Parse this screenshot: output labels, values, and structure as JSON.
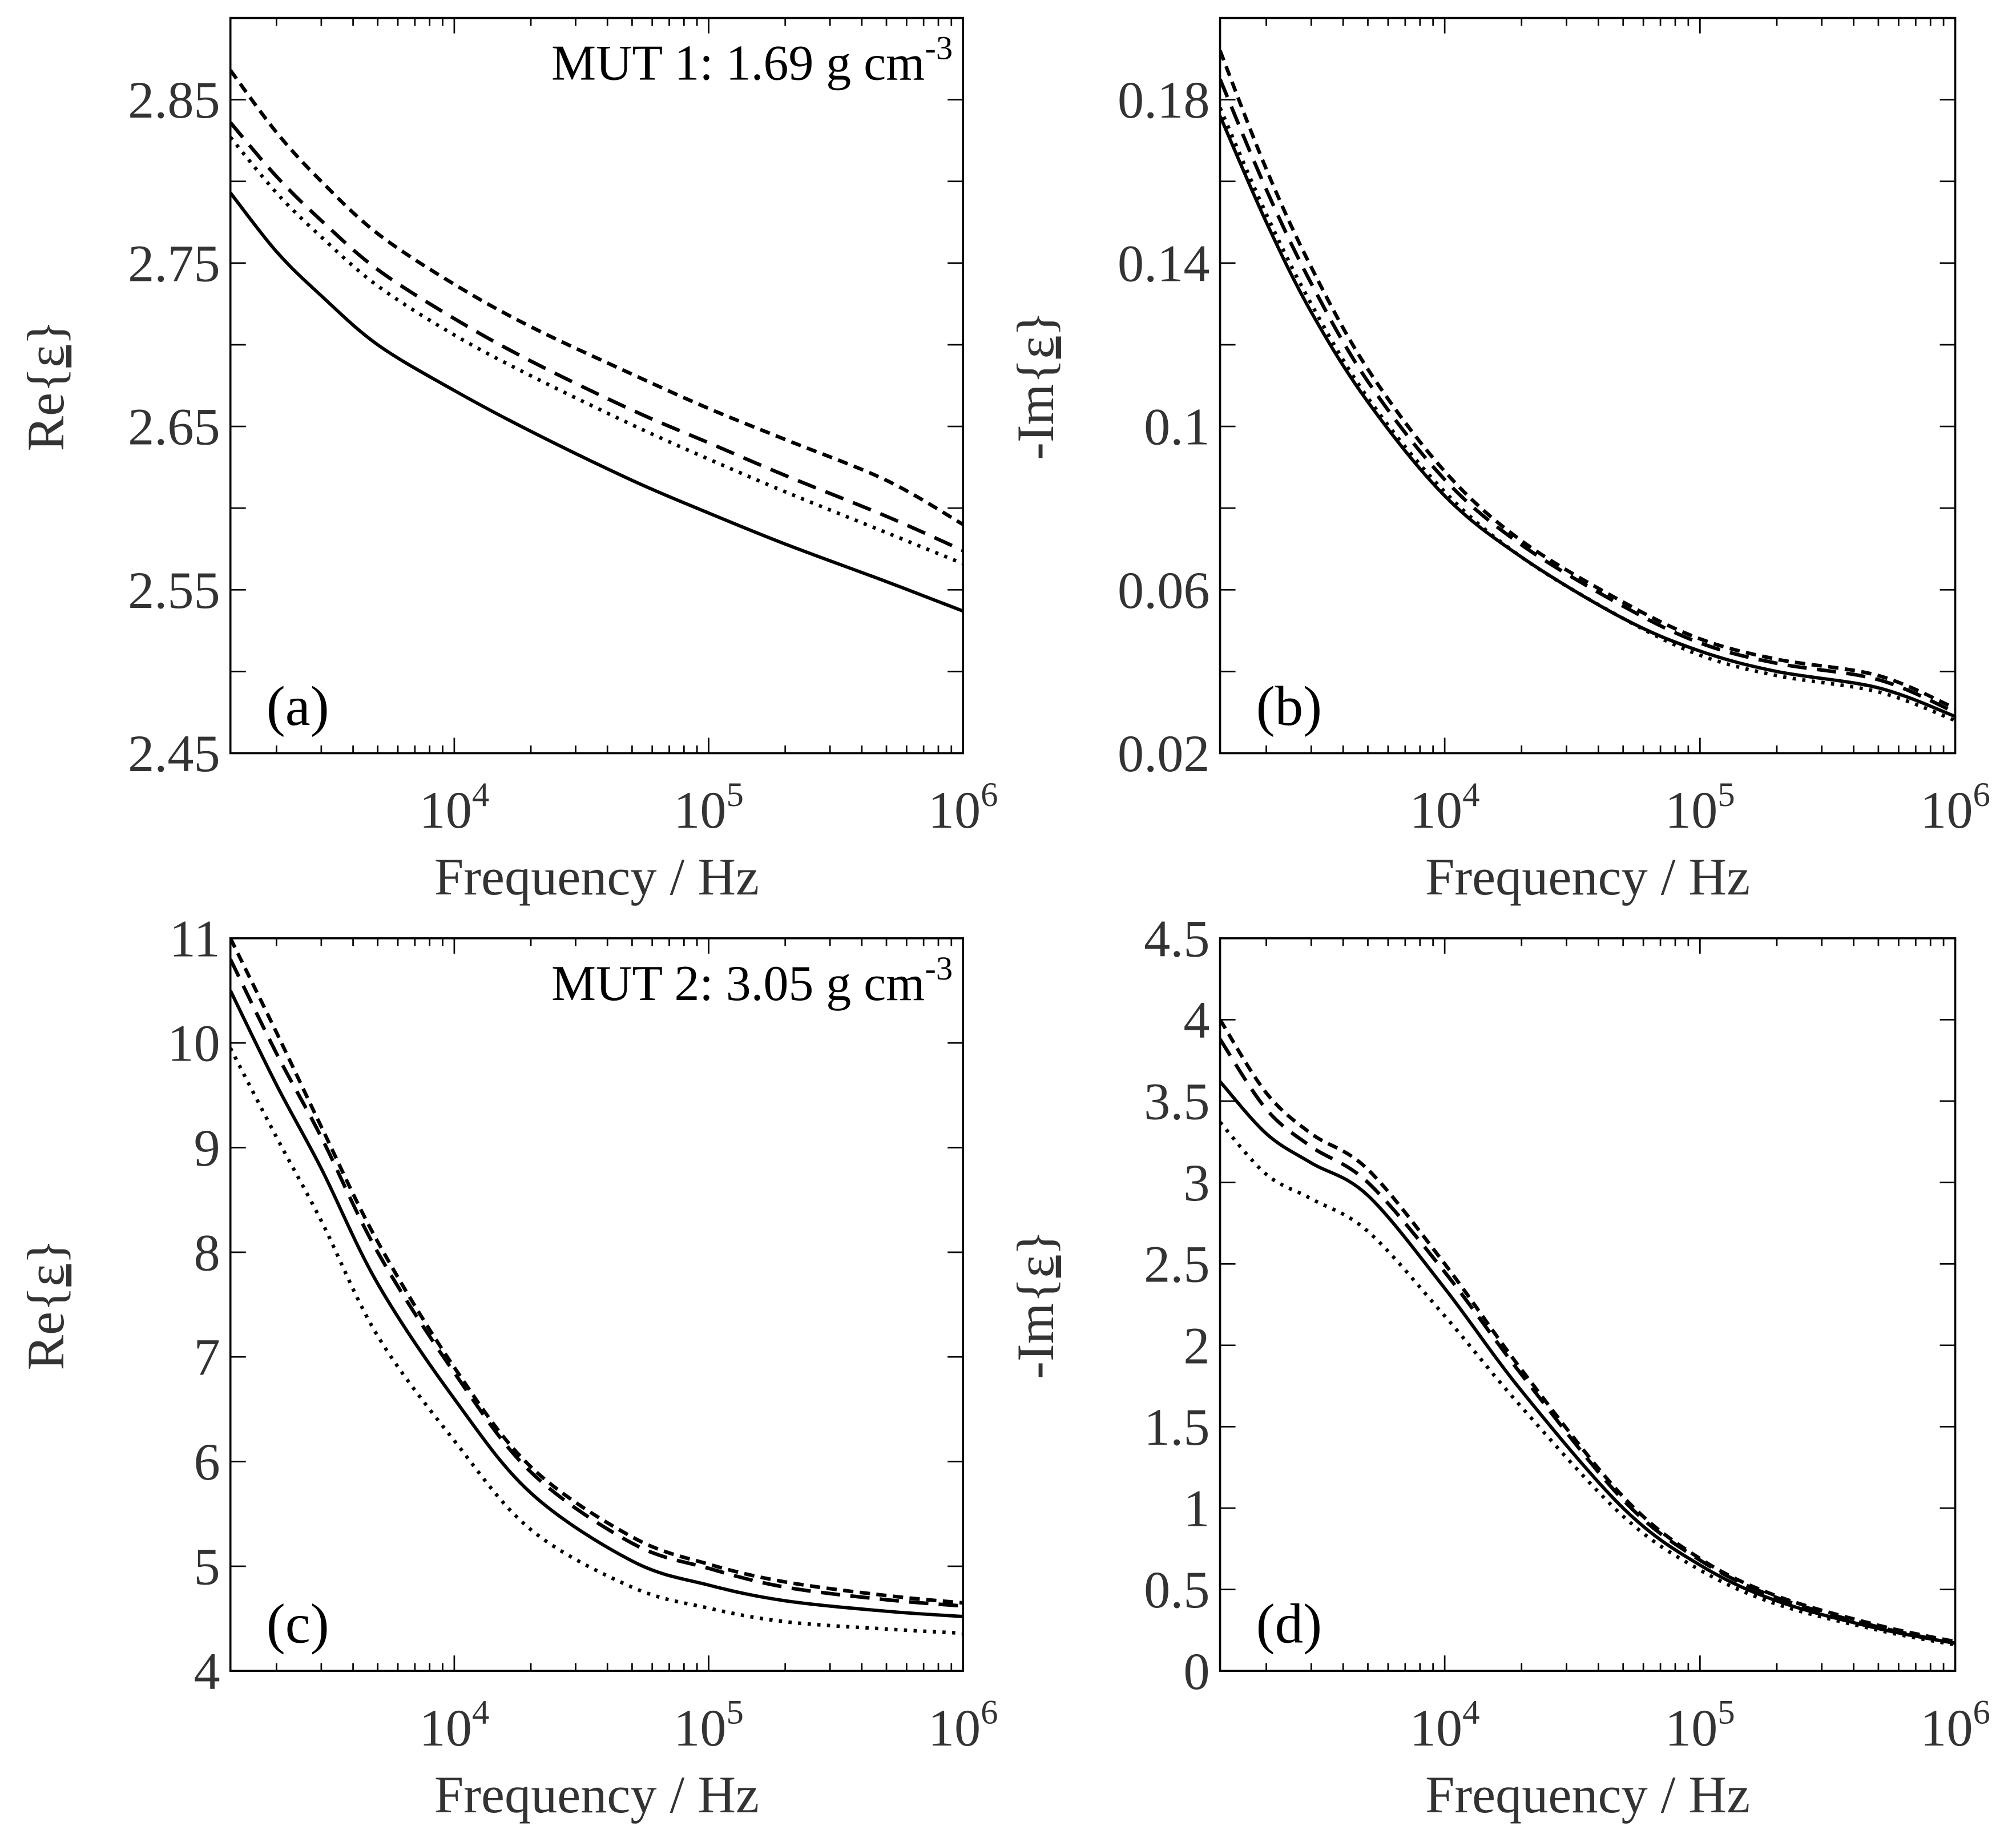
{
  "chart_data": [
    {
      "type": "line",
      "panel_label": "(a)",
      "annotation": {
        "text": "MUT 1: 1.69 g cm",
        "sup": "-3"
      },
      "xlabel": "Frequency / Hz",
      "ylabel": {
        "prefix": "Re{",
        "symbol": "ε",
        "suffix": "}"
      },
      "xscale": "log",
      "xlim": [
        1318,
        1000000
      ],
      "ylim": [
        2.45,
        2.9
      ],
      "x_ticks": [
        10000,
        100000,
        1000000
      ],
      "x_tick_labels": [
        "10^4",
        "10^5",
        "10^6"
      ],
      "y_ticks": [
        2.45,
        2.55,
        2.65,
        2.75,
        2.85
      ],
      "y_tick_labels": [
        "2.45",
        "2.55",
        "2.65",
        "2.75",
        "2.85"
      ],
      "y_minor_step": 0.05,
      "grid": false,
      "x": [
        1318,
        2000,
        3000,
        5000,
        10000,
        20000,
        50000,
        100000,
        200000,
        500000,
        1000000
      ],
      "series": [
        {
          "style": "solid",
          "values": [
            2.793,
            2.757,
            2.73,
            2.7,
            2.672,
            2.647,
            2.617,
            2.597,
            2.578,
            2.555,
            2.537
          ]
        },
        {
          "style": "dotted",
          "values": [
            2.827,
            2.793,
            2.766,
            2.736,
            2.706,
            2.681,
            2.651,
            2.63,
            2.61,
            2.585,
            2.566
          ]
        },
        {
          "style": "long-dash",
          "values": [
            2.836,
            2.803,
            2.776,
            2.746,
            2.716,
            2.69,
            2.66,
            2.64,
            2.62,
            2.595,
            2.574
          ]
        },
        {
          "style": "short-dash",
          "values": [
            2.868,
            2.83,
            2.8,
            2.768,
            2.737,
            2.711,
            2.682,
            2.661,
            2.642,
            2.617,
            2.59
          ]
        }
      ]
    },
    {
      "type": "line",
      "panel_label": "(b)",
      "xlabel": "Frequency / Hz",
      "ylabel": {
        "prefix": "-Im{",
        "symbol": "ε",
        "suffix": "}"
      },
      "xscale": "log",
      "xlim": [
        1318,
        1000000
      ],
      "ylim": [
        0.02,
        0.2
      ],
      "x_ticks": [
        10000,
        100000,
        1000000
      ],
      "x_tick_labels": [
        "10^4",
        "10^5",
        "10^6"
      ],
      "y_ticks": [
        0.02,
        0.06,
        0.1,
        0.14,
        0.18
      ],
      "y_tick_labels": [
        "0.02",
        "0.06",
        "0.1",
        "0.14",
        "0.18"
      ],
      "y_minor_step": 0.02,
      "grid": false,
      "x": [
        1318,
        2000,
        3000,
        5000,
        10000,
        20000,
        50000,
        100000,
        200000,
        500000,
        1000000
      ],
      "series": [
        {
          "style": "solid",
          "values": [
            0.176,
            0.15,
            0.128,
            0.106,
            0.083,
            0.068,
            0.053,
            0.045,
            0.04,
            0.036,
            0.029
          ]
        },
        {
          "style": "dotted",
          "values": [
            0.178,
            0.152,
            0.13,
            0.107,
            0.084,
            0.068,
            0.053,
            0.044,
            0.039,
            0.035,
            0.028
          ]
        },
        {
          "style": "long-dash",
          "values": [
            0.185,
            0.158,
            0.135,
            0.111,
            0.087,
            0.071,
            0.056,
            0.047,
            0.042,
            0.038,
            0.03
          ]
        },
        {
          "style": "short-dash",
          "values": [
            0.192,
            0.163,
            0.139,
            0.114,
            0.089,
            0.072,
            0.057,
            0.048,
            0.043,
            0.039,
            0.031
          ]
        }
      ]
    },
    {
      "type": "line",
      "panel_label": "(c)",
      "annotation": {
        "text": "MUT 2: 3.05 g cm",
        "sup": "-3"
      },
      "xlabel": "Frequency / Hz",
      "ylabel": {
        "prefix": "Re{",
        "symbol": "ε",
        "suffix": "}"
      },
      "xscale": "log",
      "xlim": [
        1318,
        1000000
      ],
      "ylim": [
        4,
        11
      ],
      "x_ticks": [
        10000,
        100000,
        1000000
      ],
      "x_tick_labels": [
        "10^4",
        "10^5",
        "10^6"
      ],
      "y_ticks": [
        4,
        5,
        6,
        7,
        8,
        9,
        10,
        11
      ],
      "y_tick_labels": [
        "4",
        "5",
        "6",
        "7",
        "8",
        "9",
        "10",
        "11"
      ],
      "y_minor_step": 1,
      "grid": false,
      "x": [
        1318,
        2000,
        3000,
        5000,
        10000,
        20000,
        50000,
        100000,
        200000,
        500000,
        1000000
      ],
      "series": [
        {
          "style": "solid",
          "values": [
            10.5,
            9.6,
            8.8,
            7.7,
            6.6,
            5.7,
            5.05,
            4.82,
            4.67,
            4.57,
            4.52
          ]
        },
        {
          "style": "dotted",
          "values": [
            9.95,
            9.1,
            8.3,
            7.2,
            6.2,
            5.35,
            4.8,
            4.6,
            4.47,
            4.4,
            4.36
          ]
        },
        {
          "style": "long-dash",
          "values": [
            10.8,
            9.9,
            9.1,
            8.0,
            6.85,
            5.9,
            5.22,
            4.98,
            4.8,
            4.68,
            4.62
          ]
        },
        {
          "style": "short-dash",
          "values": [
            11.0,
            10.1,
            9.2,
            8.1,
            6.9,
            5.95,
            5.28,
            5.02,
            4.85,
            4.72,
            4.65
          ]
        }
      ]
    },
    {
      "type": "line",
      "panel_label": "(d)",
      "xlabel": "Frequency / Hz",
      "ylabel": {
        "prefix": "-Im{",
        "symbol": "ε",
        "suffix": "}"
      },
      "xscale": "log",
      "xlim": [
        1318,
        1000000
      ],
      "ylim": [
        0,
        4.5
      ],
      "x_ticks": [
        10000,
        100000,
        1000000
      ],
      "x_tick_labels": [
        "10^4",
        "10^5",
        "10^6"
      ],
      "y_ticks": [
        0,
        0.5,
        1,
        1.5,
        2,
        2.5,
        3,
        3.5,
        4,
        4.5
      ],
      "y_tick_labels": [
        "0",
        "0.5",
        "1",
        "1.5",
        "2",
        "2.5",
        "3",
        "3.5",
        "4",
        "4.5"
      ],
      "y_minor_step": 0.5,
      "grid": false,
      "x": [
        1318,
        2000,
        3000,
        5000,
        10000,
        20000,
        50000,
        100000,
        200000,
        500000,
        1000000
      ],
      "series": [
        {
          "style": "solid",
          "values": [
            3.62,
            3.3,
            3.12,
            2.92,
            2.35,
            1.72,
            1.0,
            0.65,
            0.43,
            0.26,
            0.17
          ]
        },
        {
          "style": "dotted",
          "values": [
            3.37,
            3.05,
            2.9,
            2.7,
            2.18,
            1.62,
            0.95,
            0.62,
            0.41,
            0.25,
            0.16
          ]
        },
        {
          "style": "long-dash",
          "values": [
            3.88,
            3.45,
            3.22,
            3.0,
            2.45,
            1.82,
            1.05,
            0.68,
            0.45,
            0.27,
            0.17
          ]
        },
        {
          "style": "short-dash",
          "values": [
            4.0,
            3.55,
            3.3,
            3.08,
            2.5,
            1.85,
            1.07,
            0.69,
            0.46,
            0.28,
            0.18
          ]
        }
      ]
    }
  ]
}
